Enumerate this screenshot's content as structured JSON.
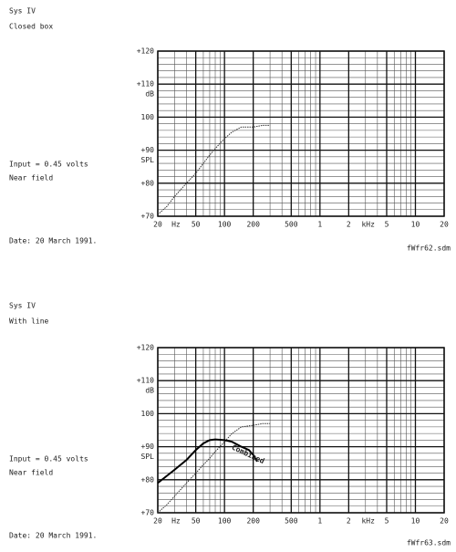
{
  "chart_data": [
    {
      "type": "line",
      "title": "Sys IV",
      "subtitle": "Closed box",
      "annotations": [
        "Input = 0.45 volts",
        "Near field",
        "Date: 20 March 1991."
      ],
      "footer": "fWfr62.sdm",
      "ylabel": "dB",
      "ylabel2": "SPL",
      "x_units": [
        "Hz",
        "kHz"
      ],
      "xscale": "log",
      "xlim": [
        20,
        20000
      ],
      "xticks": [
        20,
        50,
        100,
        200,
        500,
        {
          "value": 1000,
          "label": "1"
        },
        {
          "value": 2000,
          "label": "2"
        },
        {
          "value": 5000,
          "label": "5"
        },
        {
          "value": 10000,
          "label": "10"
        },
        {
          "value": 20000,
          "label": "20"
        }
      ],
      "ylim": [
        70,
        120
      ],
      "yticks": [
        {
          "value": 120,
          "label": "+120"
        },
        {
          "value": 110,
          "label": "+110"
        },
        100,
        {
          "value": 90,
          "label": "+90"
        },
        {
          "value": 80,
          "label": "+80"
        },
        {
          "value": 70,
          "label": "+70"
        }
      ],
      "y_minor_step": 2,
      "grid": true,
      "series": [
        {
          "color": "#333333",
          "style": "dotted",
          "x": [
            20,
            25,
            30,
            40,
            50,
            60,
            70,
            80,
            100,
            120,
            150,
            200,
            250,
            300
          ],
          "values": [
            70.5,
            73,
            76,
            80,
            83,
            86,
            88.5,
            90.5,
            93.5,
            95.5,
            97,
            97,
            97.5,
            97.5
          ]
        }
      ]
    },
    {
      "type": "line",
      "title": "Sys IV",
      "subtitle": "With line",
      "annotations": [
        "Input = 0.45 volts",
        "Near field",
        "Date: 20 March 1991."
      ],
      "footer": "fWfr63.sdm",
      "ylabel": "dB",
      "ylabel2": "SPL",
      "x_units": [
        "Hz",
        "kHz"
      ],
      "xscale": "log",
      "xlim": [
        20,
        20000
      ],
      "xticks": [
        20,
        50,
        100,
        200,
        500,
        {
          "value": 1000,
          "label": "1"
        },
        {
          "value": 2000,
          "label": "2"
        },
        {
          "value": 5000,
          "label": "5"
        },
        {
          "value": 10000,
          "label": "10"
        },
        {
          "value": 20000,
          "label": "20"
        }
      ],
      "ylim": [
        70,
        120
      ],
      "yticks": [
        {
          "value": 120,
          "label": "+120"
        },
        {
          "value": 110,
          "label": "+110"
        },
        100,
        {
          "value": 90,
          "label": "+90"
        },
        {
          "value": 80,
          "label": "+80"
        },
        {
          "value": 70,
          "label": "+70"
        }
      ],
      "y_minor_step": 2,
      "grid": true,
      "series": [
        {
          "color": "#333333",
          "style": "dotted",
          "x": [
            20,
            25,
            30,
            40,
            50,
            60,
            70,
            80,
            100,
            120,
            150,
            200,
            250,
            300
          ],
          "values": [
            70,
            72.5,
            75,
            79,
            82,
            84.5,
            86.5,
            88.5,
            91.5,
            94,
            96,
            96.5,
            97,
            97
          ]
        },
        {
          "name": "Combined",
          "color": "#000000",
          "style": "solid",
          "x": [
            20,
            30,
            40,
            50,
            60,
            70,
            80,
            100,
            120,
            150,
            180,
            200,
            220
          ],
          "values": [
            79,
            83,
            86,
            89,
            91,
            92,
            92.2,
            92,
            91.5,
            90,
            89,
            87.5,
            85.5
          ]
        }
      ]
    }
  ]
}
